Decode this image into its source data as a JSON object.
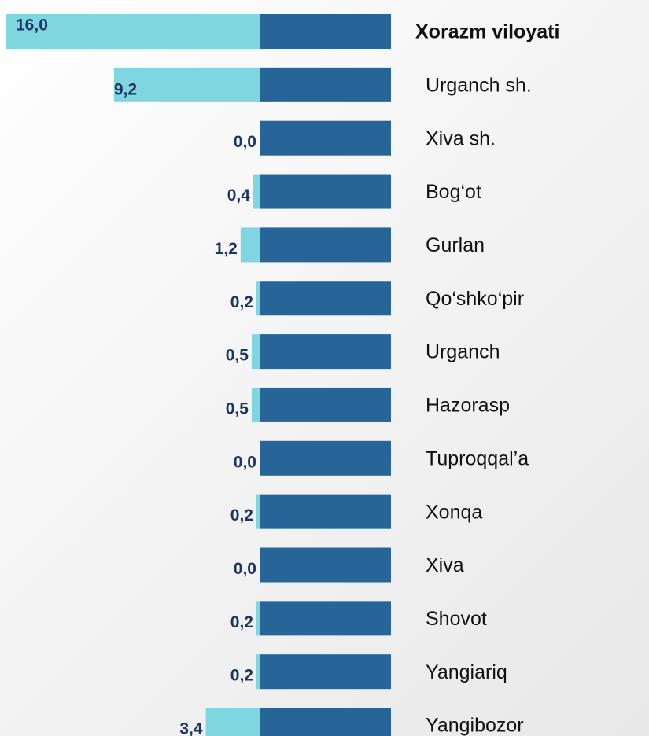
{
  "chart_data": {
    "type": "bar",
    "orientation": "horizontal",
    "categories": [
      "Xorazm viloyati",
      "Urganch sh.",
      "Xiva sh.",
      "Bog‘ot",
      "Gurlan",
      "Qo‘shko‘pir",
      "Urganch",
      "Hazorasp",
      "Tuproqqal’a",
      "Xonqa",
      "Xiva",
      "Shovot",
      "Yangiariq",
      "Yangibozor"
    ],
    "values": [
      16.0,
      9.2,
      0.0,
      0.4,
      1.2,
      0.2,
      0.5,
      0.5,
      0.0,
      0.2,
      0.0,
      0.2,
      0.2,
      3.4
    ],
    "value_labels": [
      "16,0",
      "9,2",
      "0,0",
      "0,4",
      "1,2",
      "0,2",
      "0,5",
      "0,5",
      "0,0",
      "0,2",
      "0,0",
      "0,2",
      "0,2",
      "3,4"
    ],
    "color": "#7fd5e0"
  }
}
